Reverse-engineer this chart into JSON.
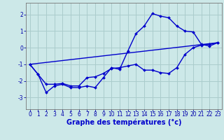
{
  "xlabel": "Graphe des températures (°c)",
  "background_color": "#cce8e8",
  "grid_color": "#aacccc",
  "line_color": "#0000cc",
  "xlim": [
    -0.5,
    23.5
  ],
  "ylim": [
    -3.7,
    2.7
  ],
  "xticks": [
    0,
    1,
    2,
    3,
    4,
    5,
    6,
    7,
    8,
    9,
    10,
    11,
    12,
    13,
    14,
    15,
    16,
    17,
    18,
    19,
    20,
    21,
    22,
    23
  ],
  "yticks": [
    -3,
    -2,
    -1,
    0,
    1,
    2
  ],
  "line1_x": [
    0,
    1,
    2,
    3,
    4,
    5,
    6,
    7,
    8,
    9,
    10,
    11,
    12,
    13,
    14,
    15,
    16,
    17,
    18,
    19,
    20,
    21,
    22,
    23
  ],
  "line1_y": [
    -1.0,
    -1.6,
    -2.7,
    -2.3,
    -2.2,
    -2.4,
    -2.4,
    -2.3,
    -2.4,
    -1.8,
    -1.2,
    -1.3,
    -0.2,
    0.85,
    1.3,
    2.05,
    1.9,
    1.8,
    1.3,
    1.0,
    0.95,
    0.2,
    0.1,
    0.3
  ],
  "line2_x": [
    0,
    1,
    2,
    3,
    4,
    5,
    6,
    7,
    8,
    9,
    10,
    11,
    12,
    13,
    14,
    15,
    16,
    17,
    18,
    19,
    20,
    21,
    22,
    23
  ],
  "line2_y": [
    -1.0,
    -1.6,
    -2.2,
    -2.2,
    -2.15,
    -2.3,
    -2.3,
    -1.8,
    -1.75,
    -1.55,
    -1.25,
    -1.2,
    -1.1,
    -1.0,
    -1.35,
    -1.35,
    -1.5,
    -1.55,
    -1.2,
    -0.4,
    0.0,
    0.15,
    0.2,
    0.3
  ],
  "line3_x": [
    0,
    23
  ],
  "line3_y": [
    -1.0,
    0.3
  ],
  "tick_fontsize": 5.5,
  "xlabel_fontsize": 7.0
}
